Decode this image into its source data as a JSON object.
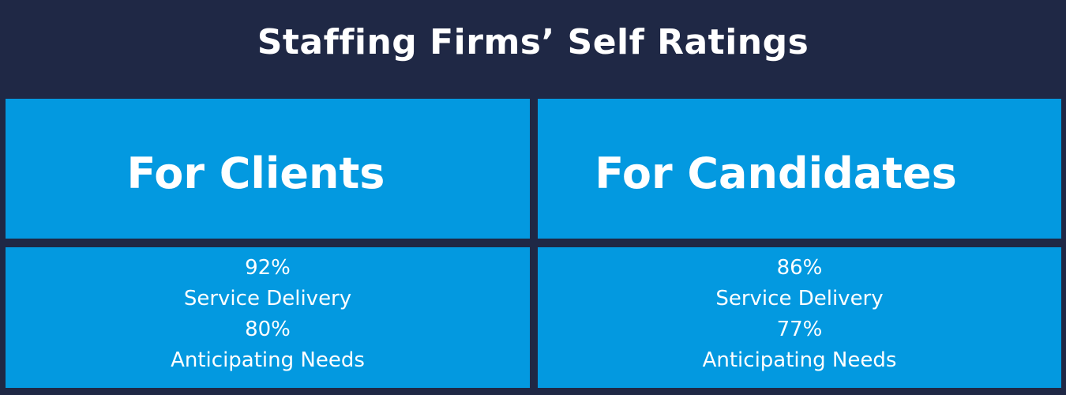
{
  "title": "Staffing Firms’ Self Ratings",
  "sections": {
    "clients": {
      "heading": "For Clients",
      "service_delivery_value": "92%",
      "service_delivery_label": "Service Delivery",
      "anticipating_needs_value": "80%",
      "anticipating_needs_label": "Anticipating Needs"
    },
    "candidates": {
      "heading": "For Candidates",
      "service_delivery_value": "86%",
      "service_delivery_label": "Service Delivery",
      "anticipating_needs_value": "77%",
      "anticipating_needs_label": "Anticipating Needs"
    }
  },
  "colors": {
    "background": "#1f2845",
    "panel": "#0399e0",
    "text": "#ffffff"
  }
}
